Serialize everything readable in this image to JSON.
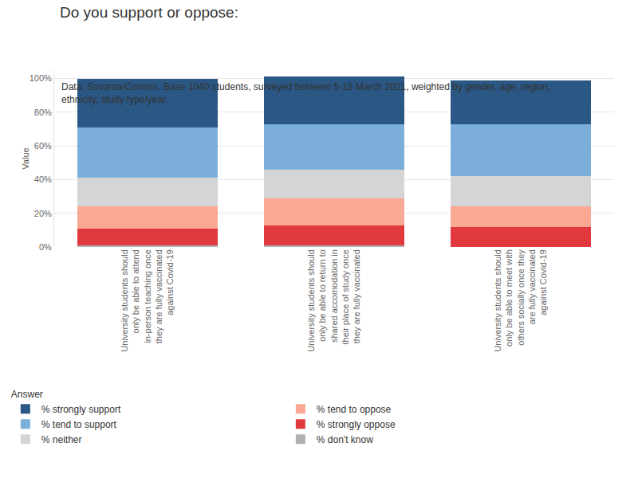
{
  "chart_data": {
    "type": "bar",
    "stacked": true,
    "title": "Do you support or oppose:",
    "subtitle": "Data: Savanta/Comres. Base 1040 students, surveyed between 5-18 March 2021, weighted by gender, age, region, ethnicity, study type/year.",
    "y_label": "Value",
    "legend_title": "Answer",
    "legend": "bottom left",
    "grid": true,
    "categories": [
      "University students should only be able to attend in-person teaching once they are fully vaccinated against Covid-19",
      "University students should only be able to return to shared accomodation in their place of study once they are fully vaccinated",
      "University students should only be able to meet with others socially once they are fully vaccinated against Covid-19"
    ],
    "series": [
      {
        "name": "% don't know",
        "color": "#b0b0b0",
        "values": [
          1,
          1,
          0
        ]
      },
      {
        "name": "% strongly oppose",
        "color": "#e03a3e",
        "values": [
          10,
          12,
          12
        ]
      },
      {
        "name": "% tend to oppose",
        "color": "#f8a893",
        "values": [
          13,
          16,
          12
        ]
      },
      {
        "name": "% neither",
        "color": "#d5d5d5",
        "values": [
          17,
          17,
          18
        ]
      },
      {
        "name": "% tend to support",
        "color": "#7bafd9",
        "values": [
          30,
          27,
          31
        ]
      },
      {
        "name": "% strongly support",
        "color": "#2a5783",
        "values": [
          29,
          28,
          26
        ]
      }
    ],
    "ylim": [
      0,
      105
    ],
    "yticks": [
      {
        "value": 0,
        "label": "0%"
      },
      {
        "value": 20,
        "label": "20%"
      },
      {
        "value": 40,
        "label": "40%"
      },
      {
        "value": 60,
        "label": "60%"
      },
      {
        "value": 80,
        "label": "80%"
      },
      {
        "value": 100,
        "label": "100%"
      }
    ]
  }
}
